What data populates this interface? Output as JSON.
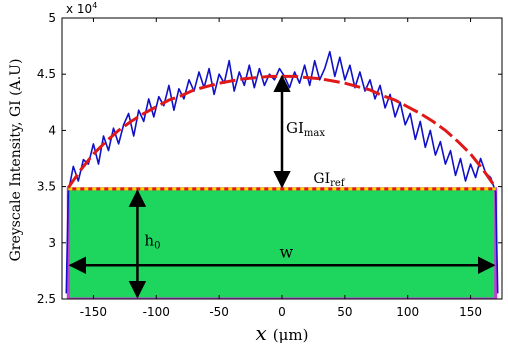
{
  "chart_data": {
    "type": "line",
    "xlabel": "x (μm)",
    "xlabel_var": "x",
    "xlabel_unit": "(μm)",
    "ylabel": "Greyscale Intensity, GI (A.U)",
    "y_exponent_label": "x 10",
    "y_exponent_power": "4",
    "xlim": [
      -175,
      175
    ],
    "ylim": [
      2.5,
      5.0
    ],
    "x_ticks": [
      -150,
      -100,
      -50,
      0,
      50,
      100,
      150
    ],
    "y_ticks": [
      2.5,
      3,
      3.5,
      4,
      4.5,
      5
    ],
    "series": [
      {
        "style": "noisy-line",
        "color": "#1010c8",
        "x": [
          -170,
          -166,
          -162,
          -158,
          -154,
          -150,
          -146,
          -142,
          -138,
          -134,
          -130,
          -126,
          -122,
          -118,
          -114,
          -110,
          -106,
          -102,
          -98,
          -94,
          -90,
          -86,
          -82,
          -78,
          -74,
          -70,
          -66,
          -62,
          -58,
          -54,
          -50,
          -46,
          -42,
          -38,
          -34,
          -30,
          -26,
          -22,
          -18,
          -14,
          -10,
          -6,
          -2,
          2,
          6,
          10,
          14,
          18,
          22,
          26,
          30,
          34,
          38,
          42,
          46,
          50,
          54,
          58,
          62,
          66,
          70,
          74,
          78,
          82,
          86,
          90,
          94,
          98,
          102,
          106,
          110,
          114,
          118,
          122,
          126,
          130,
          134,
          138,
          142,
          146,
          150,
          154,
          158,
          162,
          166,
          170
        ],
        "values": [
          3.45,
          3.68,
          3.55,
          3.74,
          3.7,
          3.88,
          3.7,
          3.95,
          3.82,
          4.02,
          3.88,
          4.05,
          4.15,
          3.95,
          4.18,
          4.08,
          4.28,
          4.12,
          4.3,
          4.22,
          4.4,
          4.18,
          4.37,
          4.28,
          4.45,
          4.35,
          4.52,
          4.38,
          4.55,
          4.32,
          4.5,
          4.42,
          4.62,
          4.35,
          4.52,
          4.4,
          4.58,
          4.38,
          4.55,
          4.4,
          4.5,
          4.45,
          4.55,
          4.48,
          4.38,
          4.52,
          4.42,
          4.58,
          4.4,
          4.62,
          4.45,
          4.55,
          4.7,
          4.48,
          4.65,
          4.45,
          4.58,
          4.38,
          4.52,
          4.35,
          4.45,
          4.28,
          4.4,
          4.2,
          4.32,
          4.12,
          4.25,
          4.05,
          4.15,
          3.92,
          4.08,
          3.85,
          4.0,
          3.78,
          3.9,
          3.7,
          3.82,
          3.6,
          3.75,
          3.55,
          3.7,
          3.58,
          3.75,
          3.62,
          3.58,
          3.45
        ]
      },
      {
        "style": "fit-curve",
        "color": "#e01818",
        "x": [
          -170,
          -160,
          -150,
          -140,
          -130,
          -120,
          -110,
          -100,
          -90,
          -80,
          -70,
          -60,
          -50,
          -40,
          -30,
          -20,
          -10,
          0,
          10,
          20,
          30,
          40,
          50,
          60,
          70,
          80,
          90,
          100,
          110,
          120,
          130,
          140,
          150,
          160,
          170
        ],
        "values": [
          3.49,
          3.65,
          3.79,
          3.9,
          4.0,
          4.08,
          4.15,
          4.21,
          4.27,
          4.31,
          4.36,
          4.39,
          4.42,
          4.44,
          4.46,
          4.47,
          4.48,
          4.48,
          4.48,
          4.47,
          4.46,
          4.44,
          4.42,
          4.39,
          4.36,
          4.31,
          4.27,
          4.21,
          4.15,
          4.08,
          4.0,
          3.9,
          3.79,
          3.65,
          3.49
        ]
      }
    ],
    "reference_line": {
      "y": 3.48,
      "color": "#e8d800"
    },
    "rectangle": {
      "x": [
        -170,
        170
      ],
      "y": [
        2.5,
        3.48
      ],
      "fill": "#1ed65e",
      "edge": "#c83cdc"
    },
    "annotations": {
      "gi_max": {
        "base": "GI",
        "sub": "max",
        "x": 0,
        "y_from": 4.48,
        "y_to": 3.5
      },
      "gi_ref": {
        "base": "GI",
        "sub": "ref"
      },
      "h0": {
        "base": "h",
        "sub": "0",
        "x": -115,
        "y_from": 3.46,
        "y_to": 2.52
      },
      "w": {
        "text": "w",
        "y": 2.8,
        "x_from": -170,
        "x_to": 170
      }
    }
  }
}
